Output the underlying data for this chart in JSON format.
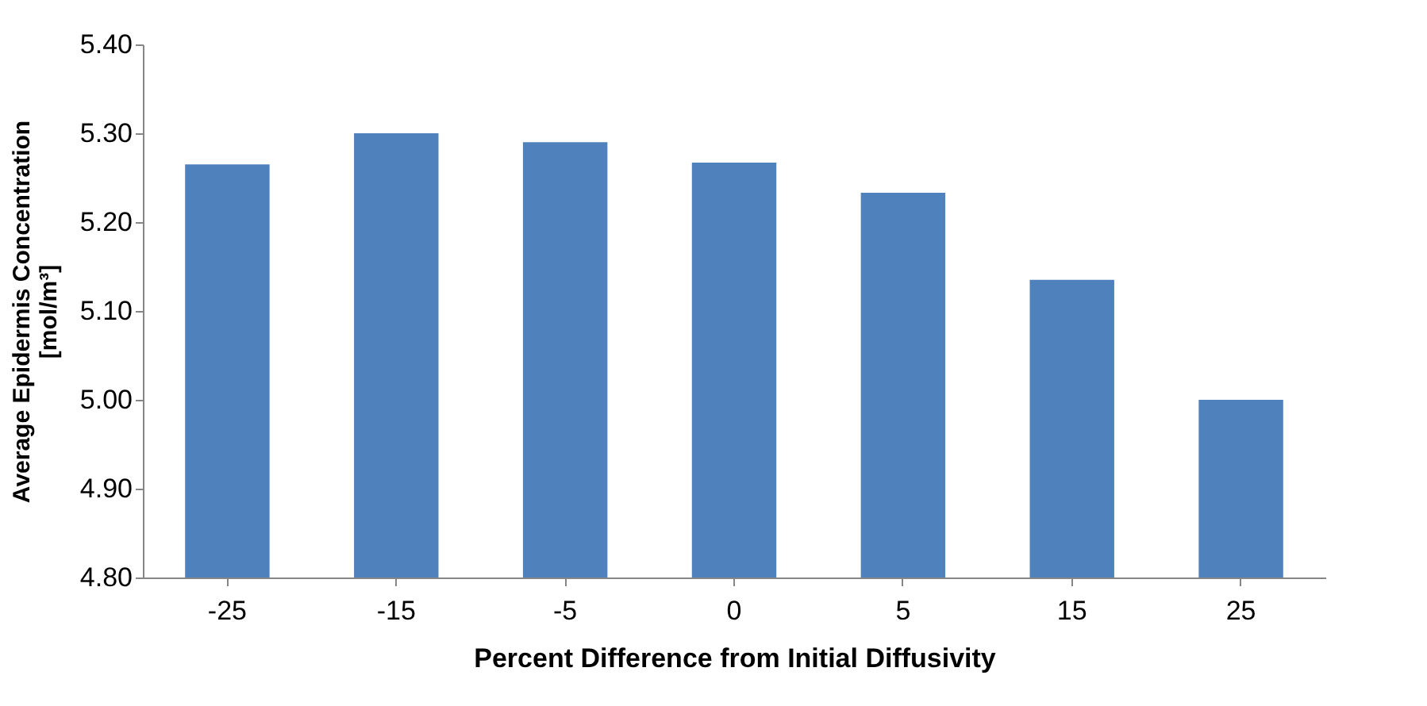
{
  "chart_data": {
    "type": "bar",
    "xlabel": "Percent Difference from Initial Diffusivity",
    "ylabel": "Average Epidermis Concentration\n[mol/m³]",
    "categories": [
      "-25",
      "-15",
      "-5",
      "0",
      "5",
      "15",
      "25"
    ],
    "values": [
      5.265,
      5.3,
      5.29,
      5.267,
      5.233,
      5.135,
      5.0
    ],
    "color": "#4f81bd",
    "ylim": [
      4.8,
      5.4
    ],
    "yticks": [
      {
        "value": 4.8,
        "label": "4.80"
      },
      {
        "value": 4.9,
        "label": "4.90"
      },
      {
        "value": 5.0,
        "label": "5.00"
      },
      {
        "value": 5.1,
        "label": "5.10"
      },
      {
        "value": 5.2,
        "label": "5.20"
      },
      {
        "value": 5.3,
        "label": "5.30"
      },
      {
        "value": 5.4,
        "label": "5.40"
      }
    ],
    "grid": false
  }
}
